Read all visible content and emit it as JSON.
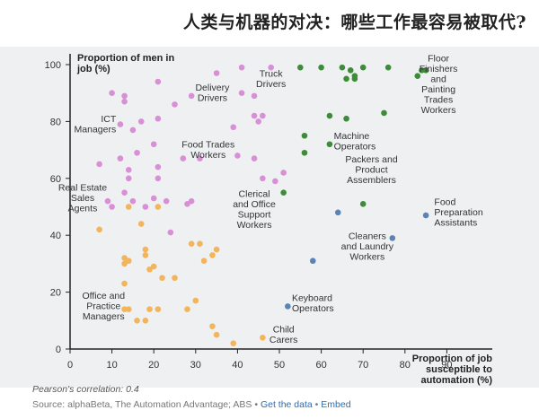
{
  "header": {
    "title": "人类与机器的对决：哪些工作最容易被取代?"
  },
  "footer": {
    "correlation": "Pearson's correlation: 0.4",
    "source_prefix": "Source: alphaBeta, The Automation Advantage; ABS",
    "separator": "•",
    "get_data_link": "Get the data",
    "embed_link": "Embed"
  },
  "chart_data": {
    "type": "scatter",
    "title": "人类与机器的对决：哪些工作最容易被取代?",
    "xlabel": "Proportion of job susceptible to automation (%)",
    "ylabel": "Proportion of men in job (%)",
    "xlim": [
      0,
      100
    ],
    "ylim": [
      0,
      100
    ],
    "xticks": [
      0,
      10,
      20,
      30,
      40,
      50,
      60,
      70,
      80,
      90
    ],
    "yticks": [
      0,
      20,
      40,
      60,
      80,
      100
    ],
    "grid": false,
    "colors": {
      "pink": "#d98fd6",
      "orange": "#f2b55b",
      "green": "#3d8c38",
      "blue": "#5b84b5"
    },
    "series": [
      {
        "name": "pink",
        "color": "#d98fd6",
        "points": [
          [
            10,
            90
          ],
          [
            13,
            89
          ],
          [
            13,
            87
          ],
          [
            21,
            94
          ],
          [
            25,
            86
          ],
          [
            29,
            89
          ],
          [
            35,
            97
          ],
          [
            41,
            99
          ],
          [
            48,
            99
          ],
          [
            12,
            79
          ],
          [
            15,
            77
          ],
          [
            17,
            80
          ],
          [
            21,
            81
          ],
          [
            20,
            72
          ],
          [
            12,
            67
          ],
          [
            16,
            69
          ],
          [
            14,
            63
          ],
          [
            21,
            64
          ],
          [
            27,
            67
          ],
          [
            31,
            67
          ],
          [
            7,
            65
          ],
          [
            14,
            60
          ],
          [
            21,
            60
          ],
          [
            13,
            55
          ],
          [
            15,
            52
          ],
          [
            18,
            50
          ],
          [
            20,
            53
          ],
          [
            23,
            52
          ],
          [
            28,
            51
          ],
          [
            29,
            52
          ],
          [
            24,
            41
          ],
          [
            9,
            52
          ],
          [
            10,
            50
          ],
          [
            39,
            78
          ],
          [
            40,
            68
          ],
          [
            44,
            67
          ],
          [
            44,
            82
          ],
          [
            45,
            80
          ],
          [
            46,
            82
          ],
          [
            44,
            89
          ],
          [
            46,
            60
          ],
          [
            49,
            59
          ],
          [
            51,
            62
          ],
          [
            41,
            90
          ]
        ]
      },
      {
        "name": "orange",
        "color": "#f2b55b",
        "points": [
          [
            7,
            42
          ],
          [
            14,
            50
          ],
          [
            17,
            44
          ],
          [
            21,
            50
          ],
          [
            18,
            35
          ],
          [
            18,
            33
          ],
          [
            20,
            29
          ],
          [
            19,
            28
          ],
          [
            13,
            32
          ],
          [
            13,
            30
          ],
          [
            14,
            31
          ],
          [
            22,
            25
          ],
          [
            25,
            25
          ],
          [
            13,
            23
          ],
          [
            29,
            37
          ],
          [
            31,
            37
          ],
          [
            32,
            31
          ],
          [
            34,
            33
          ],
          [
            35,
            35
          ],
          [
            13,
            14
          ],
          [
            14,
            14
          ],
          [
            19,
            14
          ],
          [
            21,
            14
          ],
          [
            16,
            10
          ],
          [
            18,
            10
          ],
          [
            28,
            14
          ],
          [
            30,
            17
          ],
          [
            34,
            8
          ],
          [
            35,
            5
          ],
          [
            39,
            2
          ],
          [
            46,
            4
          ]
        ]
      },
      {
        "name": "green",
        "color": "#3d8c38",
        "points": [
          [
            55,
            99
          ],
          [
            60,
            99
          ],
          [
            65,
            99
          ],
          [
            67,
            98
          ],
          [
            66,
            95
          ],
          [
            68,
            96
          ],
          [
            68,
            95
          ],
          [
            70,
            99
          ],
          [
            76,
            99
          ],
          [
            83,
            96
          ],
          [
            84,
            98
          ],
          [
            85,
            98
          ],
          [
            62,
            82
          ],
          [
            66,
            81
          ],
          [
            75,
            83
          ],
          [
            56,
            75
          ],
          [
            62,
            72
          ],
          [
            56,
            69
          ],
          [
            51,
            55
          ],
          [
            70,
            51
          ]
        ]
      },
      {
        "name": "blue",
        "color": "#5b84b5",
        "points": [
          [
            64,
            48
          ],
          [
            77,
            39
          ],
          [
            85,
            47
          ],
          [
            58,
            31
          ],
          [
            52,
            15
          ]
        ]
      }
    ],
    "annotations": [
      {
        "text": "Floor Finishers and Painting Trades Workers",
        "x": 88,
        "y": 92,
        "anchor": "middle",
        "lines": [
          "Floor",
          "Finishers",
          "and",
          "Painting",
          "Trades",
          "Workers"
        ]
      },
      {
        "text": "Truck Drivers",
        "x": 48,
        "y": 94,
        "anchor": "middle",
        "lines": [
          "Truck",
          "Drivers"
        ]
      },
      {
        "text": "Delivery Drivers",
        "x": 34,
        "y": 89,
        "anchor": "middle",
        "lines": [
          "Delivery",
          "Drivers"
        ]
      },
      {
        "text": "ICT Managers",
        "x": 11,
        "y": 78,
        "anchor": "end",
        "lines": [
          "ICT",
          "Managers"
        ]
      },
      {
        "text": "Machine Operators",
        "x": 63,
        "y": 72,
        "anchor": "start",
        "lines": [
          "Machine",
          "Operators"
        ]
      },
      {
        "text": "Food Trades Workers",
        "x": 33,
        "y": 69,
        "anchor": "middle",
        "lines": [
          "Food Trades",
          "Workers"
        ]
      },
      {
        "text": "Packers and Product Assemblers",
        "x": 72,
        "y": 62,
        "anchor": "middle",
        "lines": [
          "Packers and",
          "Product",
          "Assemblers"
        ]
      },
      {
        "text": "Real Estate Sales Agents",
        "x": 3,
        "y": 52,
        "anchor": "middle",
        "lines": [
          "Real Estate",
          "Sales",
          "Agents"
        ]
      },
      {
        "text": "Clerical and Office Support Workers",
        "x": 44,
        "y": 48,
        "anchor": "middle",
        "lines": [
          "Clerical",
          "and Office",
          "Support",
          "Workers"
        ]
      },
      {
        "text": "Food Preparation Assistants",
        "x": 87,
        "y": 47,
        "anchor": "start",
        "lines": [
          "Food",
          "Preparation",
          "Assistants"
        ]
      },
      {
        "text": "Cleaners and Laundry Workers",
        "x": 71,
        "y": 35,
        "anchor": "middle",
        "lines": [
          "Cleaners",
          "and Laundry",
          "Workers"
        ]
      },
      {
        "text": "Office and Practice Managers",
        "x": 8,
        "y": 14,
        "anchor": "middle",
        "lines": [
          "Office and",
          "Practice",
          "Managers"
        ]
      },
      {
        "text": "Keyboard Operators",
        "x": 53,
        "y": 15,
        "anchor": "start",
        "lines": [
          "Keyboard",
          "Operators"
        ]
      },
      {
        "text": "Child Carers",
        "x": 51,
        "y": 4,
        "anchor": "middle",
        "lines": [
          "Child",
          "Carers"
        ]
      }
    ]
  }
}
